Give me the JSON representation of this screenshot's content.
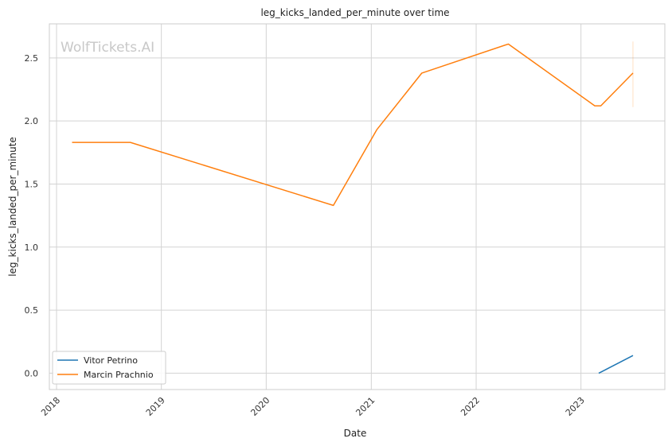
{
  "watermark": "WolfTickets.AI",
  "chart_data": {
    "type": "line",
    "title": "leg_kicks_landed_per_minute over time",
    "xlabel": "Date",
    "ylabel": "leg_kicks_landed_per_minute",
    "x_ticks": [
      "2018",
      "2019",
      "2020",
      "2021",
      "2022",
      "2023"
    ],
    "y_ticks": [
      "0.0",
      "0.5",
      "1.0",
      "1.5",
      "2.0",
      "2.5"
    ],
    "xlim": [
      "2017-12-07",
      "2023-10-20"
    ],
    "ylim": [
      -0.13,
      2.77
    ],
    "grid": true,
    "legend_position": "lower-left",
    "series": [
      {
        "name": "Vitor Petrino",
        "color": "#1f77b4",
        "points": [
          {
            "x": "2023-03-04",
            "y": 0.0
          },
          {
            "x": "2023-07-01",
            "y": 0.14
          }
        ]
      },
      {
        "name": "Marcin Prachnio",
        "color": "#ff7f0e",
        "points": [
          {
            "x": "2018-02-24",
            "y": 1.83
          },
          {
            "x": "2018-09-15",
            "y": 1.83
          },
          {
            "x": "2020-08-22",
            "y": 1.33
          },
          {
            "x": "2021-01-20",
            "y": 1.93
          },
          {
            "x": "2021-06-26",
            "y": 2.38
          },
          {
            "x": "2022-04-23",
            "y": 2.61
          },
          {
            "x": "2023-02-18",
            "y": 2.12
          },
          {
            "x": "2023-03-11",
            "y": 2.12
          },
          {
            "x": "2023-07-01",
            "y": 2.38
          }
        ],
        "band": {
          "x": "2023-07-01",
          "y_low": 2.11,
          "y_high": 2.63
        }
      }
    ]
  }
}
